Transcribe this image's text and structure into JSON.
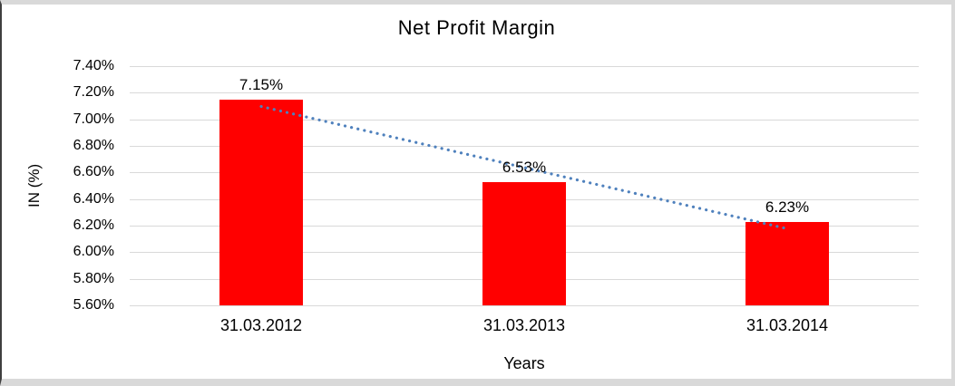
{
  "chart_data": {
    "type": "bar",
    "title": "Net Profit Margin",
    "xlabel": "Years",
    "ylabel": "IN (%)",
    "categories": [
      "31.03.2012",
      "31.03.2013",
      "31.03.2014"
    ],
    "values": [
      7.15,
      6.53,
      6.23
    ],
    "data_labels": [
      "7.15%",
      "6.53%",
      "6.23%"
    ],
    "ylim": [
      5.6,
      7.4
    ],
    "ytick_values": [
      7.4,
      7.2,
      7.0,
      6.8,
      6.6,
      6.4,
      6.2,
      6.0,
      5.8,
      5.6
    ],
    "ytick_labels": [
      "7.40%",
      "7.20%",
      "7.00%",
      "6.80%",
      "6.60%",
      "6.40%",
      "6.20%",
      "6.00%",
      "5.80%",
      "5.60%"
    ],
    "grid": true,
    "legend": false,
    "bar_color": "#ff0000",
    "gridline_color": "#d9d9d9",
    "trendline": {
      "type": "linear",
      "style": "dotted",
      "color": "#4f81bd"
    }
  }
}
